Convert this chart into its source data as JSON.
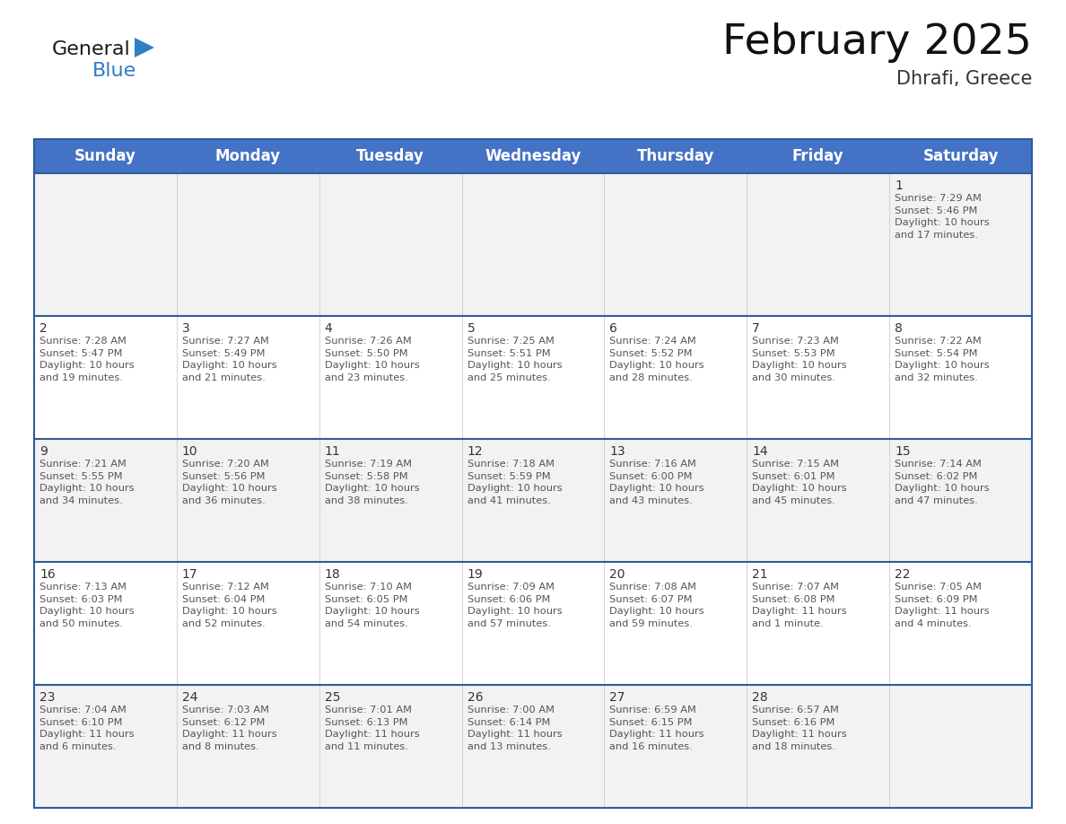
{
  "title": "February 2025",
  "subtitle": "Dhrafi, Greece",
  "days_of_week": [
    "Sunday",
    "Monday",
    "Tuesday",
    "Wednesday",
    "Thursday",
    "Friday",
    "Saturday"
  ],
  "header_bg": "#4472C4",
  "header_text_color": "#FFFFFF",
  "cell_bg_row0": "#F2F2F2",
  "cell_bg_row1": "#FFFFFF",
  "cell_bg_row2": "#F2F2F2",
  "cell_bg_row3": "#FFFFFF",
  "cell_bg_row4": "#F2F2F2",
  "border_color": "#2E5C99",
  "day_number_color": "#333333",
  "info_text_color": "#555555",
  "logo_general_color": "#1a1a1a",
  "logo_blue_color": "#2E7EC6",
  "logo_triangle_color": "#2E7EC6",
  "calendar_data": [
    [
      null,
      null,
      null,
      null,
      null,
      null,
      {
        "day": 1,
        "sunrise": "7:29 AM",
        "sunset": "5:46 PM",
        "daylight": "10 hours\nand 17 minutes."
      }
    ],
    [
      {
        "day": 2,
        "sunrise": "7:28 AM",
        "sunset": "5:47 PM",
        "daylight": "10 hours\nand 19 minutes."
      },
      {
        "day": 3,
        "sunrise": "7:27 AM",
        "sunset": "5:49 PM",
        "daylight": "10 hours\nand 21 minutes."
      },
      {
        "day": 4,
        "sunrise": "7:26 AM",
        "sunset": "5:50 PM",
        "daylight": "10 hours\nand 23 minutes."
      },
      {
        "day": 5,
        "sunrise": "7:25 AM",
        "sunset": "5:51 PM",
        "daylight": "10 hours\nand 25 minutes."
      },
      {
        "day": 6,
        "sunrise": "7:24 AM",
        "sunset": "5:52 PM",
        "daylight": "10 hours\nand 28 minutes."
      },
      {
        "day": 7,
        "sunrise": "7:23 AM",
        "sunset": "5:53 PM",
        "daylight": "10 hours\nand 30 minutes."
      },
      {
        "day": 8,
        "sunrise": "7:22 AM",
        "sunset": "5:54 PM",
        "daylight": "10 hours\nand 32 minutes."
      }
    ],
    [
      {
        "day": 9,
        "sunrise": "7:21 AM",
        "sunset": "5:55 PM",
        "daylight": "10 hours\nand 34 minutes."
      },
      {
        "day": 10,
        "sunrise": "7:20 AM",
        "sunset": "5:56 PM",
        "daylight": "10 hours\nand 36 minutes."
      },
      {
        "day": 11,
        "sunrise": "7:19 AM",
        "sunset": "5:58 PM",
        "daylight": "10 hours\nand 38 minutes."
      },
      {
        "day": 12,
        "sunrise": "7:18 AM",
        "sunset": "5:59 PM",
        "daylight": "10 hours\nand 41 minutes."
      },
      {
        "day": 13,
        "sunrise": "7:16 AM",
        "sunset": "6:00 PM",
        "daylight": "10 hours\nand 43 minutes."
      },
      {
        "day": 14,
        "sunrise": "7:15 AM",
        "sunset": "6:01 PM",
        "daylight": "10 hours\nand 45 minutes."
      },
      {
        "day": 15,
        "sunrise": "7:14 AM",
        "sunset": "6:02 PM",
        "daylight": "10 hours\nand 47 minutes."
      }
    ],
    [
      {
        "day": 16,
        "sunrise": "7:13 AM",
        "sunset": "6:03 PM",
        "daylight": "10 hours\nand 50 minutes."
      },
      {
        "day": 17,
        "sunrise": "7:12 AM",
        "sunset": "6:04 PM",
        "daylight": "10 hours\nand 52 minutes."
      },
      {
        "day": 18,
        "sunrise": "7:10 AM",
        "sunset": "6:05 PM",
        "daylight": "10 hours\nand 54 minutes."
      },
      {
        "day": 19,
        "sunrise": "7:09 AM",
        "sunset": "6:06 PM",
        "daylight": "10 hours\nand 57 minutes."
      },
      {
        "day": 20,
        "sunrise": "7:08 AM",
        "sunset": "6:07 PM",
        "daylight": "10 hours\nand 59 minutes."
      },
      {
        "day": 21,
        "sunrise": "7:07 AM",
        "sunset": "6:08 PM",
        "daylight": "11 hours\nand 1 minute."
      },
      {
        "day": 22,
        "sunrise": "7:05 AM",
        "sunset": "6:09 PM",
        "daylight": "11 hours\nand 4 minutes."
      }
    ],
    [
      {
        "day": 23,
        "sunrise": "7:04 AM",
        "sunset": "6:10 PM",
        "daylight": "11 hours\nand 6 minutes."
      },
      {
        "day": 24,
        "sunrise": "7:03 AM",
        "sunset": "6:12 PM",
        "daylight": "11 hours\nand 8 minutes."
      },
      {
        "day": 25,
        "sunrise": "7:01 AM",
        "sunset": "6:13 PM",
        "daylight": "11 hours\nand 11 minutes."
      },
      {
        "day": 26,
        "sunrise": "7:00 AM",
        "sunset": "6:14 PM",
        "daylight": "11 hours\nand 13 minutes."
      },
      {
        "day": 27,
        "sunrise": "6:59 AM",
        "sunset": "6:15 PM",
        "daylight": "11 hours\nand 16 minutes."
      },
      {
        "day": 28,
        "sunrise": "6:57 AM",
        "sunset": "6:16 PM",
        "daylight": "11 hours\nand 18 minutes."
      },
      null
    ]
  ],
  "title_fontsize": 34,
  "subtitle_fontsize": 15,
  "header_fontsize": 12,
  "day_num_fontsize": 10,
  "info_fontsize": 8.2,
  "logo_fontsize": 16
}
